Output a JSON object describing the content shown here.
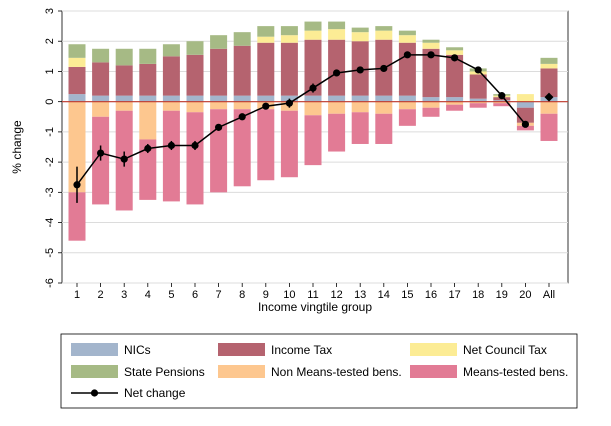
{
  "chart_data": {
    "type": "bar",
    "stacked": true,
    "xlabel": "Income vingtile group",
    "ylabel": "% change",
    "ylim": [
      -6,
      3
    ],
    "yticks": [
      3,
      2,
      1,
      0,
      -1,
      -2,
      -3,
      -4,
      -5,
      -6
    ],
    "grid": true,
    "legend_position": "bottom",
    "categories": [
      "1",
      "2",
      "3",
      "4",
      "5",
      "6",
      "7",
      "8",
      "9",
      "10",
      "11",
      "12",
      "13",
      "14",
      "15",
      "16",
      "17",
      "18",
      "19",
      "20",
      "All"
    ],
    "series": [
      {
        "name": "NICs",
        "color": "#a3b5cc",
        "values": [
          0.25,
          0.2,
          0.2,
          0.2,
          0.2,
          0.2,
          0.2,
          0.2,
          0.2,
          0.2,
          0.2,
          0.2,
          0.2,
          0.2,
          0.2,
          0.15,
          0.15,
          0.1,
          0.05,
          -0.2,
          0.15
        ]
      },
      {
        "name": "Income Tax",
        "color": "#b5636f",
        "values": [
          0.9,
          1.1,
          1.0,
          1.05,
          1.3,
          1.35,
          1.55,
          1.65,
          1.75,
          1.75,
          1.85,
          1.85,
          1.8,
          1.85,
          1.75,
          1.6,
          1.4,
          0.8,
          0.1,
          -0.5,
          0.95
        ]
      },
      {
        "name": "Net Council Tax",
        "color": "#fcec95",
        "values": [
          0.3,
          0,
          0,
          0,
          0,
          0,
          0,
          0,
          0.2,
          0.25,
          0.3,
          0.35,
          0.3,
          0.3,
          0.25,
          0.2,
          0.15,
          0.1,
          0.05,
          0.25,
          0.15
        ]
      },
      {
        "name": "State Pensions",
        "color": "#a6ba85",
        "values": [
          0.45,
          0.45,
          0.55,
          0.5,
          0.4,
          0.45,
          0.45,
          0.45,
          0.35,
          0.3,
          0.3,
          0.25,
          0.15,
          0.15,
          0.15,
          0.1,
          0.1,
          0.1,
          0.05,
          0,
          0.2
        ]
      },
      {
        "name": "Non Means-tested bens.",
        "color": "#fdc78f",
        "values": [
          -3.0,
          -0.5,
          -0.3,
          -1.25,
          -0.3,
          -0.35,
          -0.25,
          -0.25,
          -0.25,
          -0.3,
          -0.45,
          -0.4,
          -0.35,
          -0.4,
          -0.25,
          -0.2,
          -0.1,
          -0.05,
          -0.05,
          -0.1,
          -0.4
        ]
      },
      {
        "name": "Means-tested bens.",
        "color": "#e27b95",
        "values": [
          -1.6,
          -2.9,
          -3.3,
          -2.0,
          -3.0,
          -3.05,
          -2.75,
          -2.55,
          -2.35,
          -2.2,
          -1.65,
          -1.25,
          -1.05,
          -1.0,
          -0.55,
          -0.3,
          -0.2,
          -0.15,
          -0.1,
          -0.15,
          -0.9
        ]
      }
    ],
    "net_change": {
      "name": "Net change",
      "color": "#000000",
      "values": [
        -2.75,
        -1.7,
        -1.9,
        -1.55,
        -1.45,
        -1.45,
        -0.85,
        -0.5,
        -0.15,
        -0.05,
        0.45,
        0.95,
        1.05,
        1.1,
        1.55,
        1.55,
        1.45,
        1.05,
        0.2,
        -0.75,
        0.15
      ],
      "ci_low": [
        -3.35,
        -1.95,
        -2.15,
        -1.7,
        -1.6,
        -1.6,
        -0.95,
        -0.6,
        -0.25,
        -0.2,
        0.3,
        0.85,
        0.95,
        1.0,
        1.45,
        1.45,
        1.35,
        0.95,
        0.15,
        -0.85,
        0.1
      ],
      "ci_high": [
        -2.15,
        -1.45,
        -1.65,
        -1.4,
        -1.3,
        -1.3,
        -0.75,
        -0.4,
        -0.05,
        0.1,
        0.6,
        1.05,
        1.15,
        1.2,
        1.65,
        1.65,
        1.55,
        1.15,
        0.25,
        -0.65,
        0.2
      ]
    }
  }
}
